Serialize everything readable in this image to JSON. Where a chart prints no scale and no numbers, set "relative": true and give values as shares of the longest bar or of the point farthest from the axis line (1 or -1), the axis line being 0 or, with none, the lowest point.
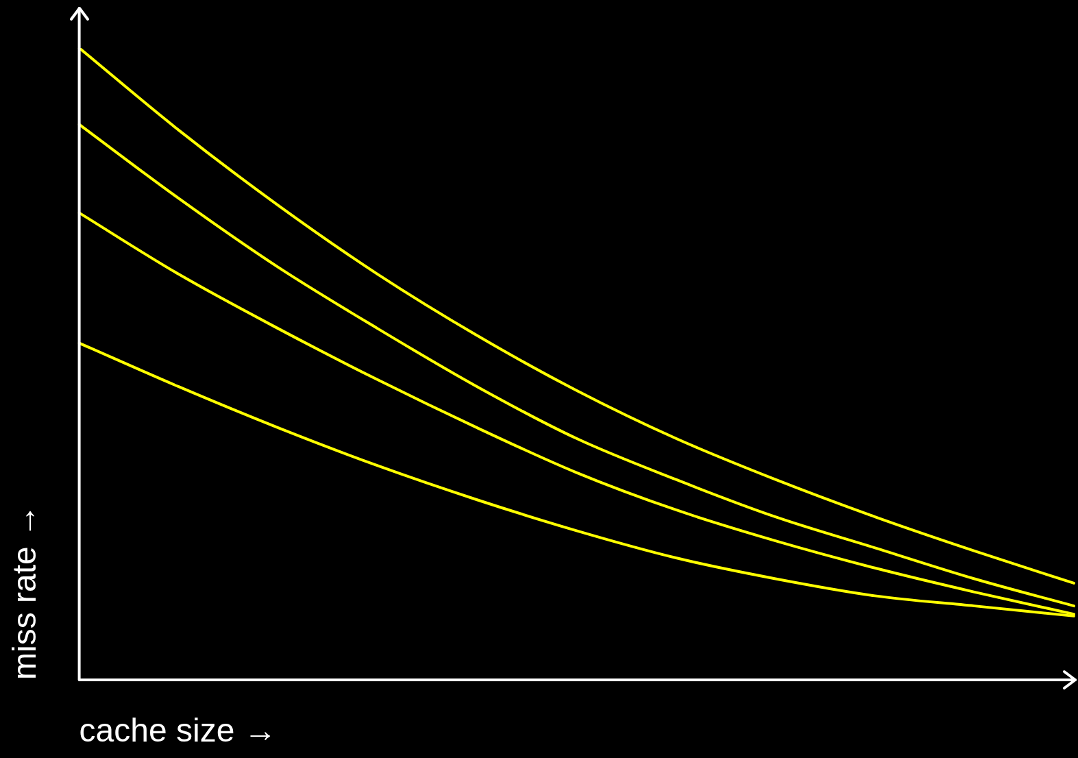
{
  "chart_data": {
    "type": "line",
    "relative": true,
    "xlabel": "cache size →",
    "ylabel": "miss rate →",
    "categories": [
      null,
      null,
      null,
      null,
      null,
      null,
      null,
      null,
      null,
      null,
      null
    ],
    "legend": false,
    "marker": "none",
    "line_style": "solid",
    "series": [
      {
        "color": "#ffff00",
        "values": [
          1,
          0.87,
          0.751,
          0.642,
          0.545,
          0.458,
          0.382,
          0.317,
          0.258,
          0.204,
          0.153
        ]
      },
      {
        "color": "#ffff00",
        "values": [
          0.879,
          0.762,
          0.653,
          0.556,
          0.464,
          0.382,
          0.317,
          0.258,
          0.209,
          0.16,
          0.117
        ]
      },
      {
        "color": "#ffff00",
        "values": [
          0.739,
          0.642,
          0.556,
          0.475,
          0.399,
          0.328,
          0.269,
          0.22,
          0.177,
          0.139,
          0.104
        ]
      },
      {
        "color": "#ffff00",
        "values": [
          0.533,
          0.464,
          0.399,
          0.339,
          0.285,
          0.236,
          0.193,
          0.16,
          0.133,
          0.117,
          0.101
        ]
      }
    ]
  }
}
